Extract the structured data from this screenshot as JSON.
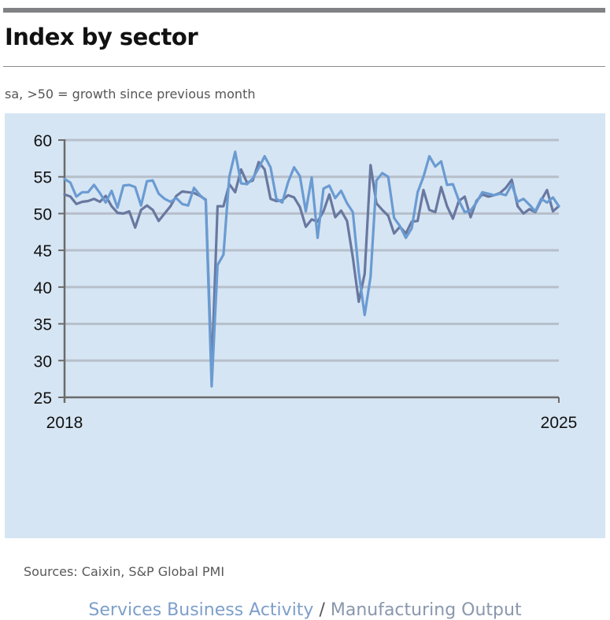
{
  "header": {
    "title": "Index by sector",
    "subtitle": "sa, >50 = growth since previous month"
  },
  "footer": {
    "sources": "Sources: Caixin, S&P Global PMI",
    "legend_separator": " / "
  },
  "colors": {
    "services": "#6a9bd2",
    "manufacturing": "#6878a0",
    "background": "#d6e5f3",
    "gridline": "#b6bfca",
    "axis": "#6b6b6b"
  },
  "chart_data": {
    "type": "line",
    "title": "Index by sector",
    "subtitle": "sa, >50 = growth since previous month",
    "xlabel": "",
    "ylabel": "",
    "ylim": [
      25,
      60
    ],
    "yticks": [
      "60",
      "55",
      "50",
      "45",
      "40",
      "35",
      "30",
      "25"
    ],
    "ytick_values": [
      60,
      55,
      50,
      45,
      40,
      35,
      30,
      25
    ],
    "xticks": [
      "2018",
      "2025"
    ],
    "x_start": "2018-01",
    "x_end": "2025-01",
    "grid": "horizontal",
    "legend": "bottom-center",
    "series": [
      {
        "name": "Services Business Activity",
        "key": "services",
        "values": [
          54.7,
          54.2,
          52.3,
          52.9,
          52.9,
          53.9,
          52.8,
          51.5,
          53.1,
          50.8,
          53.8,
          53.9,
          53.6,
          51.1,
          54.4,
          54.5,
          52.7,
          52.0,
          51.6,
          52.1,
          51.3,
          51.1,
          53.5,
          52.5,
          51.8,
          26.5,
          43.0,
          44.4,
          55.0,
          58.4,
          54.1,
          54.0,
          54.8,
          56.2,
          57.8,
          56.3,
          52.0,
          51.5,
          54.3,
          56.3,
          55.1,
          50.3,
          54.9,
          46.7,
          53.4,
          53.8,
          52.1,
          53.1,
          51.4,
          50.2,
          42.0,
          36.2,
          41.4,
          54.5,
          55.5,
          55.0,
          49.4,
          48.3,
          46.7,
          48.0,
          52.9,
          55.0,
          57.8,
          56.4,
          57.1,
          53.9,
          54.0,
          51.8,
          50.2,
          50.4,
          51.5,
          52.9,
          52.7,
          52.5,
          52.7,
          52.5,
          54.0,
          51.6,
          52.0,
          51.2,
          50.3,
          52.0,
          51.5,
          52.2,
          51.0
        ]
      },
      {
        "name": "Manufacturing Output",
        "key": "manufacturing",
        "values": [
          52.6,
          52.3,
          51.3,
          51.6,
          51.7,
          52.0,
          51.6,
          52.4,
          51.0,
          50.1,
          50.0,
          50.3,
          48.1,
          50.5,
          51.1,
          50.5,
          49.0,
          50.0,
          51.0,
          52.4,
          53.0,
          52.9,
          52.8,
          52.4,
          51.9,
          28.5,
          51.0,
          51.0,
          54.0,
          52.9,
          56.0,
          54.2,
          54.5,
          57.0,
          56.0,
          52.0,
          51.7,
          51.8,
          52.5,
          52.2,
          50.9,
          48.2,
          49.2,
          48.9,
          50.3,
          52.6,
          49.5,
          50.4,
          49.0,
          44.0,
          38.0,
          41.8,
          56.6,
          51.4,
          50.5,
          49.7,
          47.3,
          48.2,
          47.3,
          48.9,
          49.0,
          53.2,
          50.5,
          50.2,
          53.6,
          51.0,
          49.3,
          51.7,
          52.3,
          49.5,
          51.7,
          52.6,
          52.3,
          52.5,
          52.8,
          53.5,
          54.6,
          51.0,
          50.0,
          50.6,
          50.2,
          51.8,
          53.2,
          50.3,
          51.0
        ]
      }
    ]
  }
}
